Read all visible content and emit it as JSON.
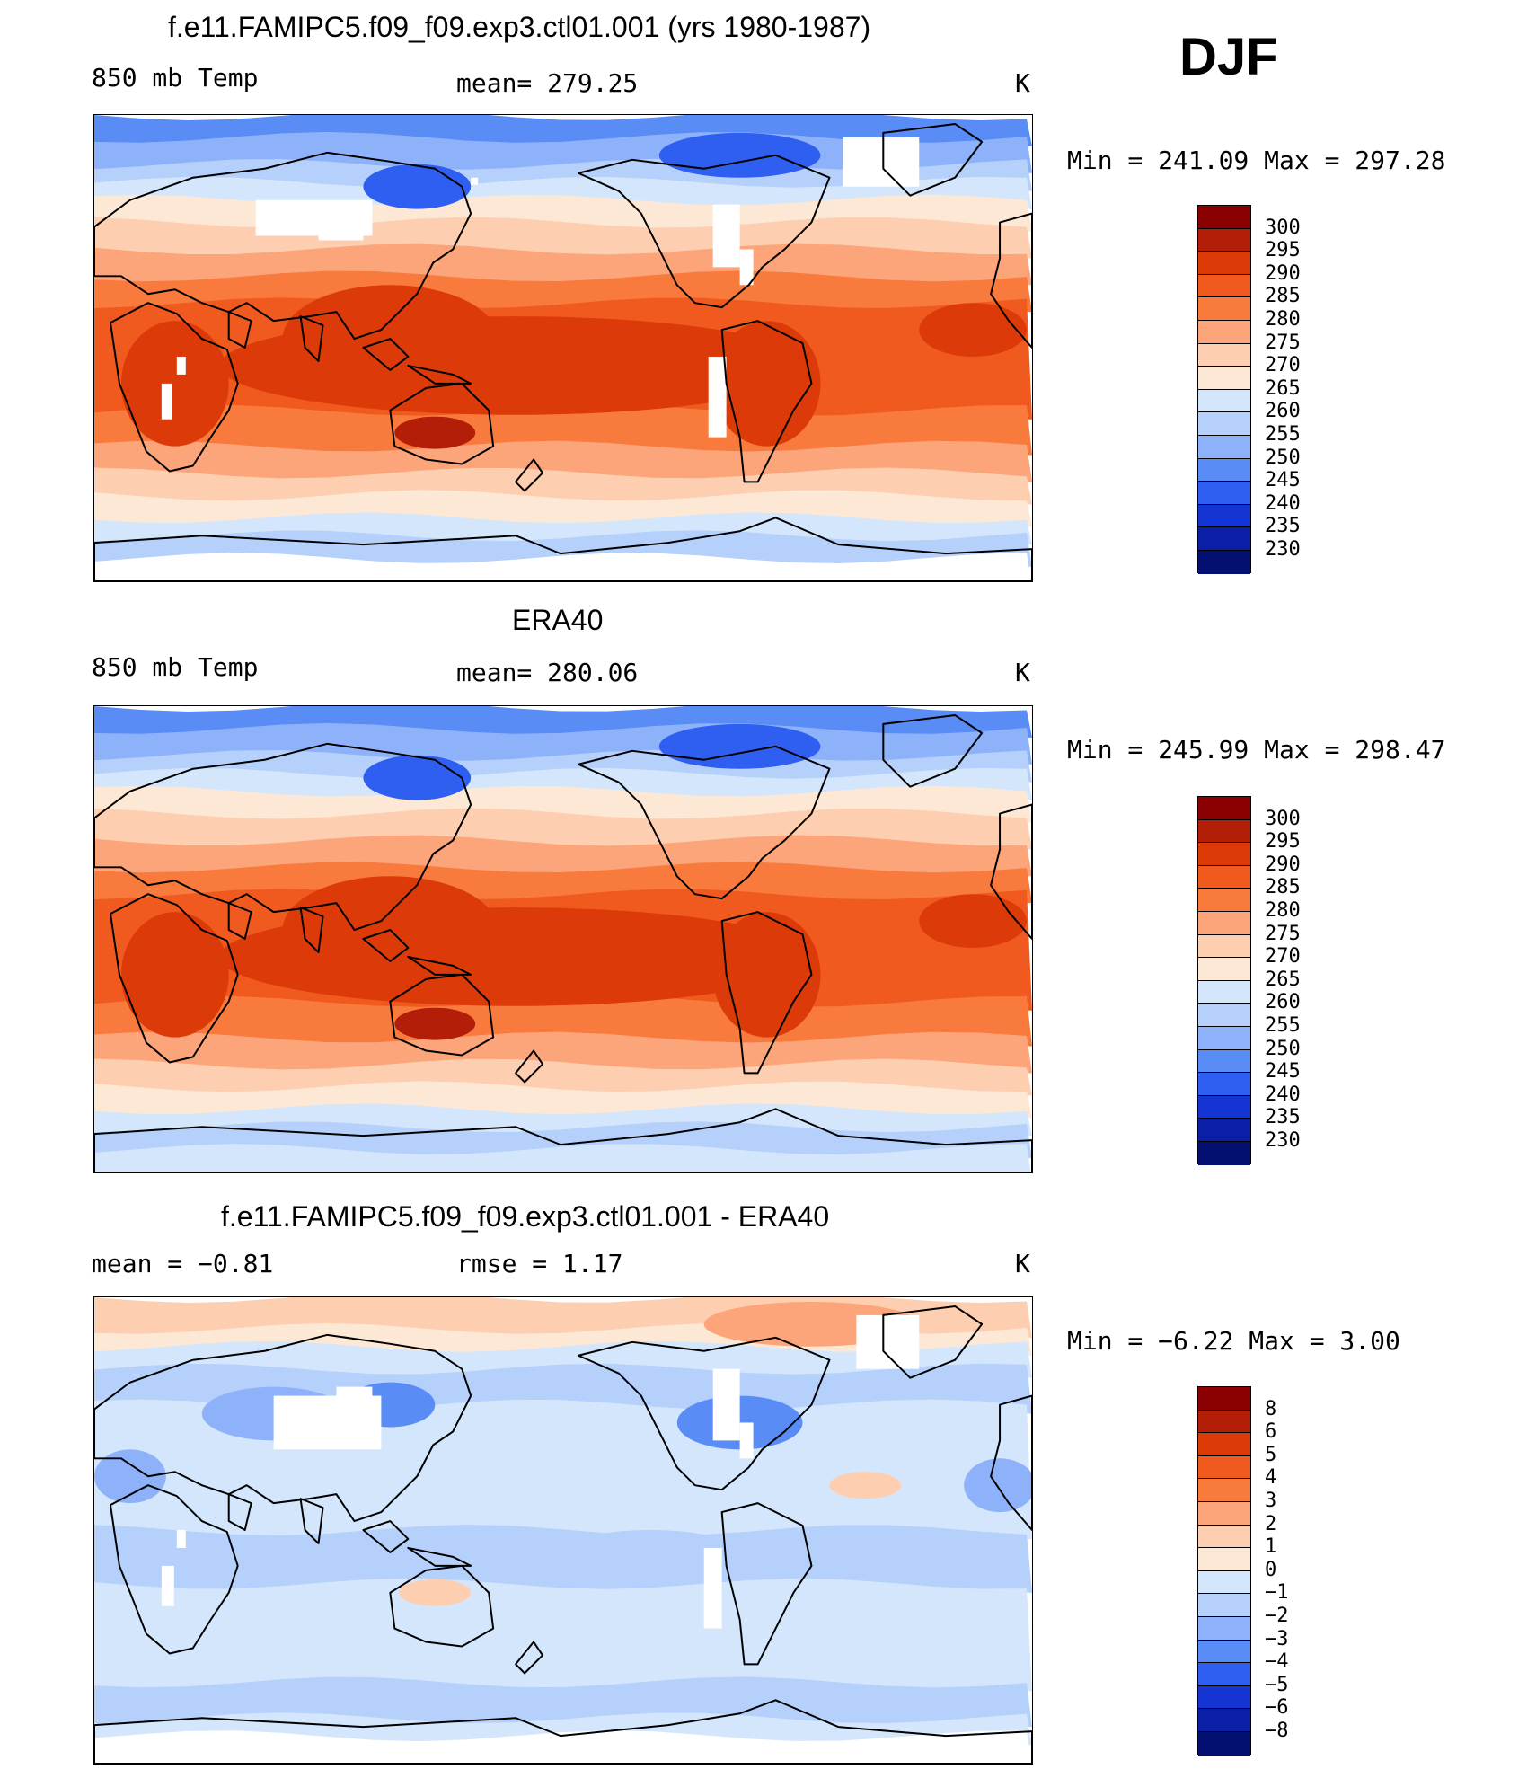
{
  "season": "DJF",
  "panels": [
    {
      "title": "f.e11.FAMIPC5.f09_f09.exp3.ctl01.001 (yrs 1980-1987)",
      "left_label": "850 mb Temp",
      "center_label": "mean=  279.25",
      "units": "K",
      "minmax": "Min  =  241.09  Max  =  297.28",
      "colorbar": {
        "labels": [
          "300",
          "295",
          "290",
          "285",
          "280",
          "275",
          "270",
          "265",
          "260",
          "255",
          "250",
          "245",
          "240",
          "235",
          "230"
        ],
        "colors": [
          "#8b0000",
          "#b21e08",
          "#dc3a09",
          "#f05a1e",
          "#f87a3c",
          "#fca47a",
          "#fdcfb0",
          "#fde8d6",
          "#d4e6fb",
          "#b5d0fb",
          "#8eb2fa",
          "#5a8cf6",
          "#2f5ff0",
          "#1534d4",
          "#0a1fa6",
          "#041070"
        ]
      },
      "map_kind": "model"
    },
    {
      "title": "ERA40",
      "left_label": "850 mb Temp",
      "center_label": "mean=  280.06",
      "units": "K",
      "minmax": "Min  =  245.99  Max  =  298.47",
      "colorbar": {
        "labels": [
          "300",
          "295",
          "290",
          "285",
          "280",
          "275",
          "270",
          "265",
          "260",
          "255",
          "250",
          "245",
          "240",
          "235",
          "230"
        ],
        "colors": [
          "#8b0000",
          "#b21e08",
          "#dc3a09",
          "#f05a1e",
          "#f87a3c",
          "#fca47a",
          "#fdcfb0",
          "#fde8d6",
          "#d4e6fb",
          "#b5d0fb",
          "#8eb2fa",
          "#5a8cf6",
          "#2f5ff0",
          "#1534d4",
          "#0a1fa6",
          "#041070"
        ]
      },
      "map_kind": "obs"
    },
    {
      "title": "f.e11.FAMIPC5.f09_f09.exp3.ctl01.001 - ERA40",
      "left_label": "mean  =    −0.81",
      "center_label": "rmse  =     1.17",
      "units": "K",
      "minmax": "Min  =    −6.22  Max  =      3.00",
      "colorbar": {
        "labels": [
          "8",
          "6",
          "5",
          "4",
          "3",
          "2",
          "1",
          "0",
          "−1",
          "−2",
          "−3",
          "−4",
          "−5",
          "−6",
          "−8"
        ],
        "colors": [
          "#8b0000",
          "#b21e08",
          "#dc3a09",
          "#f05a1e",
          "#f87a3c",
          "#fca47a",
          "#fdcfb0",
          "#fde8d6",
          "#d4e6fb",
          "#b5d0fb",
          "#8eb2fa",
          "#5a8cf6",
          "#2f5ff0",
          "#1534d4",
          "#0a1fa6",
          "#041070"
        ]
      },
      "map_kind": "diff"
    }
  ]
}
